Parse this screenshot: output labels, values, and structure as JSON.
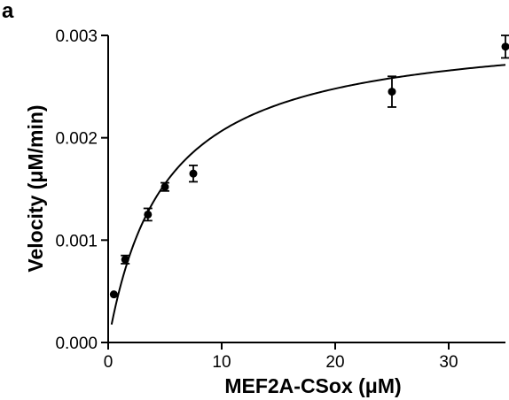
{
  "panel_label": "a",
  "chart_data": {
    "type": "scatter",
    "xlabel": "MEF2A-CSox (μM)",
    "ylabel": "Velocity (μM/min)",
    "xlim": [
      0,
      35
    ],
    "ylim": [
      0,
      0.003
    ],
    "x_ticks": [
      0,
      10,
      20,
      30
    ],
    "x_tick_labels": [
      "0",
      "10",
      "20",
      "30"
    ],
    "y_ticks": [
      0,
      0.001,
      0.002,
      0.003
    ],
    "y_tick_labels": [
      "0.000",
      "0.001",
      "0.002",
      "0.003"
    ],
    "grid": false,
    "series": [
      {
        "points": [
          {
            "x": 0.5,
            "y": 0.00047,
            "err": 1e-05
          },
          {
            "x": 1.5,
            "y": 0.00081,
            "err": 4e-05
          },
          {
            "x": 3.5,
            "y": 0.00125,
            "err": 6e-05
          },
          {
            "x": 5.0,
            "y": 0.00152,
            "err": 4e-05
          },
          {
            "x": 7.5,
            "y": 0.00165,
            "err": 8e-05
          },
          {
            "x": 25.0,
            "y": 0.00245,
            "err": 0.00015
          },
          {
            "x": 35.0,
            "y": 0.00289,
            "err": 0.00011
          }
        ]
      }
    ],
    "fit": {
      "model": "michaelis-menten",
      "vmax": 0.0031,
      "km": 5.0,
      "x_start": 0.3,
      "x_end": 35
    }
  }
}
